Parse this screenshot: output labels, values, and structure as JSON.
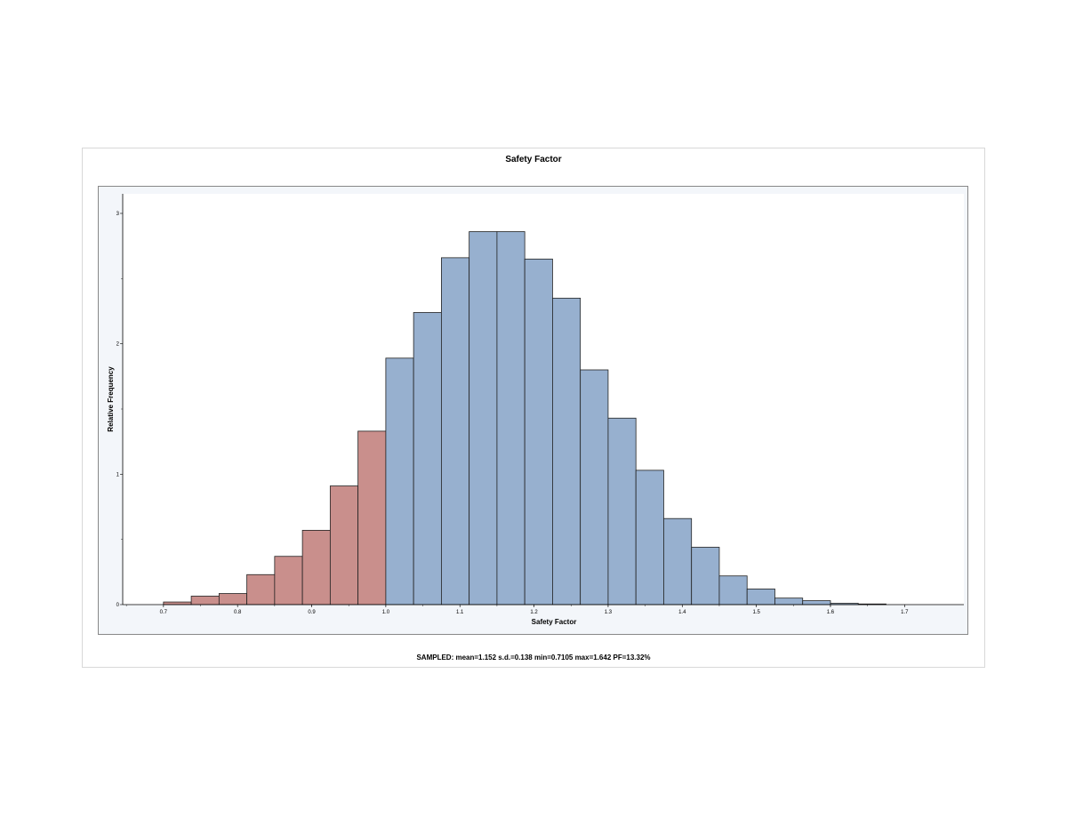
{
  "chart_data": {
    "type": "bar",
    "title": "Safety Factor",
    "xlabel": "Safety Factor",
    "ylabel": "Relative Frequency",
    "summary": "SAMPLED: mean=1.152 s.d.=0.138 min=0.7105 max=1.642 PF=13.32%",
    "xlim": [
      0.645,
      1.78
    ],
    "ylim": [
      0,
      3.15
    ],
    "x_ticks": [
      "0.7",
      "0.8",
      "0.9",
      "1.0",
      "1.1",
      "1.2",
      "1.3",
      "1.4",
      "1.5",
      "1.6",
      "1.7"
    ],
    "y_ticks": [
      "0",
      "1",
      "2",
      "3"
    ],
    "bin_width": 0.0375,
    "bins": [
      {
        "start": 0.7,
        "value": 0.02,
        "failed": true
      },
      {
        "start": 0.7375,
        "value": 0.065,
        "failed": true
      },
      {
        "start": 0.775,
        "value": 0.085,
        "failed": true
      },
      {
        "start": 0.8125,
        "value": 0.23,
        "failed": true
      },
      {
        "start": 0.85,
        "value": 0.37,
        "failed": true
      },
      {
        "start": 0.8875,
        "value": 0.57,
        "failed": true
      },
      {
        "start": 0.925,
        "value": 0.91,
        "failed": true
      },
      {
        "start": 0.9625,
        "value": 1.33,
        "failed": true
      },
      {
        "start": 1.0,
        "value": 1.89,
        "failed": false
      },
      {
        "start": 1.0375,
        "value": 2.24,
        "failed": false
      },
      {
        "start": 1.075,
        "value": 2.66,
        "failed": false
      },
      {
        "start": 1.1125,
        "value": 2.86,
        "failed": false
      },
      {
        "start": 1.15,
        "value": 2.86,
        "failed": false
      },
      {
        "start": 1.1875,
        "value": 2.65,
        "failed": false
      },
      {
        "start": 1.225,
        "value": 2.35,
        "failed": false
      },
      {
        "start": 1.2625,
        "value": 1.8,
        "failed": false
      },
      {
        "start": 1.3,
        "value": 1.43,
        "failed": false
      },
      {
        "start": 1.3375,
        "value": 1.03,
        "failed": false
      },
      {
        "start": 1.375,
        "value": 0.66,
        "failed": false
      },
      {
        "start": 1.4125,
        "value": 0.44,
        "failed": false
      },
      {
        "start": 1.45,
        "value": 0.22,
        "failed": false
      },
      {
        "start": 1.4875,
        "value": 0.12,
        "failed": false
      },
      {
        "start": 1.525,
        "value": 0.05,
        "failed": false
      },
      {
        "start": 1.5625,
        "value": 0.03,
        "failed": false
      },
      {
        "start": 1.6,
        "value": 0.01,
        "failed": false
      },
      {
        "start": 1.6375,
        "value": 0.005,
        "failed": false
      }
    ],
    "colors": {
      "failed": "#c98f8c",
      "safe": "#97b0cf",
      "outline": "#222222",
      "background": "#ffffff"
    },
    "grid": false,
    "legend": "none"
  }
}
